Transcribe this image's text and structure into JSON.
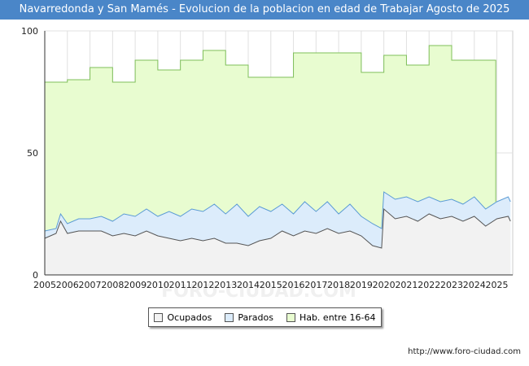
{
  "title": "Navarredonda y San Mamés - Evolucion de la poblacion en edad de Trabajar Agosto de 2025",
  "source_url": "http://www.foro-ciudad.com",
  "watermark": "FORO-CIUDAD.COM",
  "colors": {
    "title_bg": "#4a86c8",
    "hab_fill": "#e8fcd0",
    "hab_line": "#7fbf5a",
    "parados_fill": "#dcecfb",
    "parados_line": "#5b9bd5",
    "ocupados_fill": "#f2f2f2",
    "ocupados_line": "#555555"
  },
  "legend": {
    "ocupados": "Ocupados",
    "parados": "Parados",
    "hab": "Hab. entre 16-64"
  },
  "chart_data": {
    "type": "area",
    "title": "Navarredonda y San Mamés - Evolucion de la poblacion en edad de Trabajar Agosto de 2025",
    "xlabel": "",
    "ylabel": "",
    "xlim": [
      2005,
      2025.7
    ],
    "ylim": [
      0,
      100
    ],
    "y_ticks": [
      0,
      50,
      100
    ],
    "x_ticks": [
      2005,
      2006,
      2007,
      2008,
      2009,
      2010,
      2011,
      2012,
      2013,
      2014,
      2015,
      2016,
      2017,
      2018,
      2019,
      2020,
      2021,
      2022,
      2023,
      2024,
      2025
    ],
    "grid": true,
    "legend_position": "bottom",
    "series": [
      {
        "name": "Hab. entre 16-64",
        "step": true,
        "x": [
          2005,
          2006,
          2007,
          2008,
          2009,
          2010,
          2011,
          2012,
          2013,
          2014,
          2015,
          2016,
          2017,
          2018,
          2019,
          2020,
          2021,
          2022,
          2023,
          2024
        ],
        "values": [
          79,
          80,
          85,
          79,
          88,
          84,
          88,
          92,
          86,
          81,
          81,
          91,
          91,
          91,
          83,
          90,
          86,
          94,
          88,
          88
        ]
      },
      {
        "name": "Parados",
        "x": [
          2005,
          2005.5,
          2005.7,
          2006,
          2006.5,
          2007,
          2007.5,
          2008,
          2008.5,
          2009,
          2009.5,
          2010,
          2010.5,
          2011,
          2011.5,
          2012,
          2012.5,
          2013,
          2013.5,
          2014,
          2014.5,
          2015,
          2015.5,
          2016,
          2016.5,
          2017,
          2017.5,
          2018,
          2018.5,
          2019,
          2019.5,
          2019.9,
          2020,
          2020.5,
          2021,
          2021.5,
          2022,
          2022.5,
          2023,
          2023.5,
          2024,
          2024.5,
          2025,
          2025.5,
          2025.6
        ],
        "values": [
          18,
          19,
          25,
          21,
          23,
          23,
          24,
          22,
          25,
          24,
          27,
          24,
          26,
          24,
          27,
          26,
          29,
          25,
          29,
          24,
          28,
          26,
          29,
          25,
          30,
          26,
          30,
          25,
          29,
          24,
          21,
          19,
          34,
          31,
          32,
          30,
          32,
          30,
          31,
          29,
          32,
          27,
          30,
          32,
          30
        ]
      },
      {
        "name": "Ocupados",
        "x": [
          2005,
          2005.5,
          2005.7,
          2006,
          2006.5,
          2007,
          2007.5,
          2008,
          2008.5,
          2009,
          2009.5,
          2010,
          2010.5,
          2011,
          2011.5,
          2012,
          2012.5,
          2013,
          2013.5,
          2014,
          2014.5,
          2015,
          2015.5,
          2016,
          2016.5,
          2017,
          2017.5,
          2018,
          2018.5,
          2019,
          2019.5,
          2019.9,
          2020,
          2020.5,
          2021,
          2021.5,
          2022,
          2022.5,
          2023,
          2023.5,
          2024,
          2024.5,
          2025,
          2025.5,
          2025.6
        ],
        "values": [
          15,
          17,
          22,
          17,
          18,
          18,
          18,
          16,
          17,
          16,
          18,
          16,
          15,
          14,
          15,
          14,
          15,
          13,
          13,
          12,
          14,
          15,
          18,
          16,
          18,
          17,
          19,
          17,
          18,
          16,
          12,
          11,
          27,
          23,
          24,
          22,
          25,
          23,
          24,
          22,
          24,
          20,
          23,
          24,
          22
        ]
      }
    ]
  }
}
